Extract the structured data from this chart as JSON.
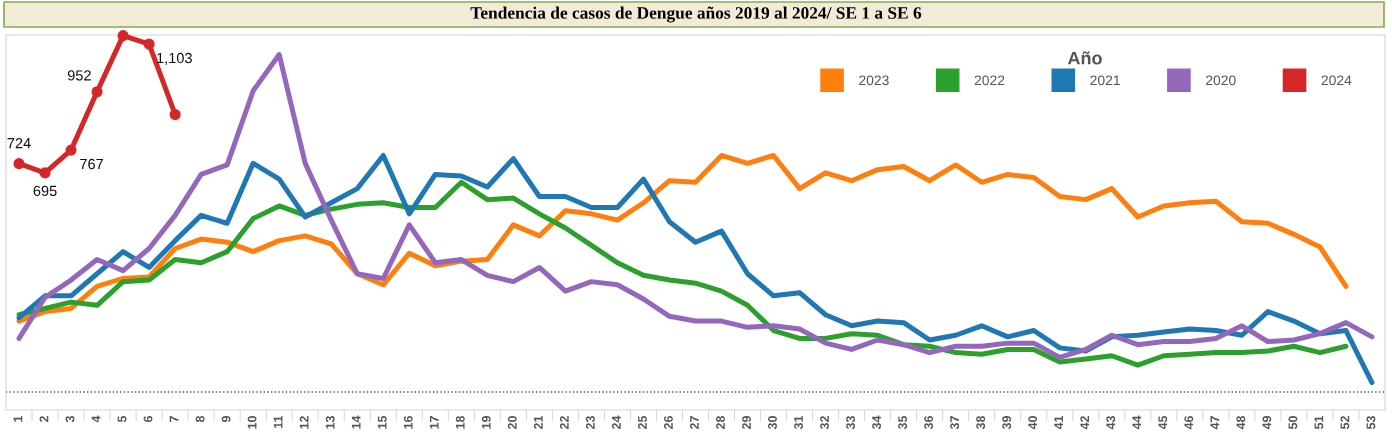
{
  "chart_data": {
    "type": "line",
    "title": "Tendencia de casos de Dengue años 2019 al 2024/ SE 1 a SE 6",
    "legend_title": "Año",
    "categories": [
      "1",
      "2",
      "3",
      "4",
      "5",
      "6",
      "7",
      "8",
      "9",
      "10",
      "11",
      "12",
      "13",
      "14",
      "15",
      "16",
      "17",
      "18",
      "19",
      "20",
      "21",
      "22",
      "23",
      "24",
      "25",
      "26",
      "27",
      "28",
      "29",
      "30",
      "31",
      "32",
      "33",
      "34",
      "35",
      "36",
      "37",
      "38",
      "39",
      "40",
      "41",
      "42",
      "43",
      "44",
      "45",
      "46",
      "47",
      "48",
      "49",
      "50",
      "51",
      "52",
      "53"
    ],
    "series": [
      {
        "name": "2023",
        "color": "#ff7f0e",
        "marker": "none",
        "values": [
          225,
          255,
          265,
          335,
          360,
          365,
          455,
          485,
          475,
          445,
          480,
          495,
          470,
          375,
          340,
          440,
          400,
          415,
          420,
          530,
          495,
          575,
          565,
          545,
          600,
          670,
          665,
          750,
          725,
          750,
          645,
          695,
          670,
          705,
          715,
          670,
          720,
          665,
          690,
          680,
          620,
          610,
          645,
          555,
          590,
          600,
          605,
          540,
          535,
          500,
          460,
          335,
          null
        ]
      },
      {
        "name": "2022",
        "color": "#2ca02c",
        "marker": "none",
        "values": [
          245,
          265,
          285,
          275,
          350,
          355,
          420,
          410,
          445,
          550,
          590,
          560,
          580,
          595,
          600,
          585,
          585,
          665,
          610,
          615,
          565,
          520,
          465,
          410,
          370,
          355,
          345,
          320,
          275,
          195,
          170,
          170,
          185,
          180,
          150,
          145,
          125,
          120,
          135,
          135,
          95,
          105,
          115,
          85,
          115,
          120,
          125,
          125,
          130,
          145,
          125,
          145,
          null
        ]
      },
      {
        "name": "2021",
        "color": "#1f77b4",
        "marker": "none",
        "values": [
          235,
          305,
          305,
          375,
          445,
          395,
          480,
          560,
          535,
          725,
          675,
          555,
          600,
          645,
          750,
          565,
          690,
          685,
          650,
          740,
          620,
          620,
          585,
          585,
          675,
          540,
          475,
          510,
          375,
          305,
          315,
          245,
          210,
          225,
          220,
          165,
          180,
          210,
          175,
          195,
          140,
          130,
          175,
          180,
          190,
          200,
          195,
          180,
          255,
          225,
          185,
          195,
          30
        ]
      },
      {
        "name": "2020",
        "color": "#9467bd",
        "marker": "none",
        "values": [
          170,
          300,
          355,
          420,
          385,
          455,
          560,
          690,
          720,
          955,
          1070,
          725,
          545,
          375,
          360,
          530,
          410,
          420,
          370,
          350,
          395,
          320,
          350,
          340,
          295,
          240,
          225,
          225,
          205,
          210,
          200,
          155,
          135,
          165,
          150,
          125,
          145,
          145,
          155,
          155,
          110,
          135,
          180,
          150,
          160,
          160,
          170,
          210,
          160,
          165,
          185,
          220,
          175
        ]
      },
      {
        "name": "2024",
        "color": "#d62728",
        "marker": "circle",
        "values": [
          724,
          695,
          767,
          952,
          1130,
          1103,
          880,
          null,
          null,
          null,
          null,
          null,
          null,
          null,
          null,
          null,
          null,
          null,
          null,
          null,
          null,
          null,
          null,
          null,
          null,
          null,
          null,
          null,
          null,
          null,
          null,
          null,
          null,
          null,
          null,
          null,
          null,
          null,
          null,
          null,
          null,
          null,
          null,
          null,
          null,
          null,
          null,
          null,
          null,
          null,
          null,
          null,
          null
        ],
        "value_labels": [
          "724",
          "695",
          "767",
          "952",
          null,
          "1,103",
          null,
          null,
          null,
          null,
          null,
          null,
          null,
          null,
          null,
          null,
          null,
          null,
          null,
          null,
          null,
          null,
          null,
          null,
          null,
          null,
          null,
          null,
          null,
          null,
          null,
          null,
          null,
          null,
          null,
          null,
          null,
          null,
          null,
          null,
          null,
          null,
          null,
          null,
          null,
          null,
          null,
          null,
          null,
          null,
          null,
          null,
          null
        ]
      }
    ],
    "ylim": [
      -57,
      1132
    ],
    "tick_labels": "x",
    "ref_lines": [
      {
        "axis": "y",
        "value": 0,
        "color": "#555555",
        "line_style": "dotted"
      }
    ],
    "grid": false,
    "legend": "top right",
    "line_style": "solid"
  }
}
